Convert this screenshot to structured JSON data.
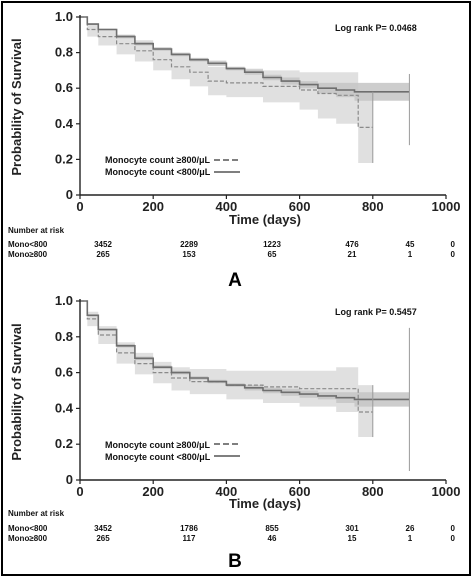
{
  "chart_data": [
    {
      "panel": "A",
      "type": "line",
      "subtype": "kaplan-meier",
      "xlabel": "Time (days)",
      "ylabel": "Probability of Survival",
      "xlim": [
        0,
        1000
      ],
      "ylim": [
        0,
        1.0
      ],
      "xticks": [
        "0",
        "200",
        "400",
        "600",
        "800",
        "1000"
      ],
      "yticks": [
        "0",
        "0.2",
        "0.4",
        "0.6",
        "0.8",
        "1.0"
      ],
      "annotation": "Log rank P= 0.0468",
      "legend_position": "bottom-left",
      "series": [
        {
          "name": "Monocyte count ≥800/μL",
          "style": "dashed",
          "x": [
            0,
            20,
            50,
            100,
            150,
            200,
            250,
            300,
            350,
            400,
            500,
            600,
            650,
            700,
            760,
            800
          ],
          "y": [
            1.0,
            0.93,
            0.89,
            0.85,
            0.81,
            0.76,
            0.72,
            0.69,
            0.64,
            0.63,
            0.61,
            0.59,
            0.57,
            0.56,
            0.38,
            0.38
          ],
          "ci_lower": [
            1.0,
            0.89,
            0.84,
            0.79,
            0.75,
            0.7,
            0.65,
            0.61,
            0.56,
            0.55,
            0.52,
            0.48,
            0.43,
            0.4,
            0.18,
            0.18
          ],
          "ci_upper": [
            1.0,
            0.96,
            0.93,
            0.9,
            0.87,
            0.82,
            0.79,
            0.76,
            0.72,
            0.71,
            0.7,
            0.69,
            0.69,
            0.69,
            0.58,
            0.58
          ]
        },
        {
          "name": "Monocyte count <800/μL",
          "style": "solid",
          "x": [
            0,
            20,
            50,
            100,
            150,
            200,
            250,
            300,
            350,
            400,
            450,
            500,
            550,
            600,
            650,
            700,
            750,
            800,
            900
          ],
          "y": [
            1.0,
            0.96,
            0.93,
            0.89,
            0.85,
            0.82,
            0.79,
            0.76,
            0.74,
            0.71,
            0.69,
            0.66,
            0.64,
            0.62,
            0.6,
            0.59,
            0.58,
            0.58,
            0.58
          ],
          "ci_lower": [
            1.0,
            0.955,
            0.925,
            0.88,
            0.84,
            0.81,
            0.78,
            0.75,
            0.725,
            0.7,
            0.675,
            0.645,
            0.62,
            0.6,
            0.57,
            0.55,
            0.53,
            0.53,
            0.28
          ],
          "ci_upper": [
            1.0,
            0.965,
            0.935,
            0.9,
            0.86,
            0.83,
            0.8,
            0.77,
            0.755,
            0.72,
            0.705,
            0.675,
            0.66,
            0.64,
            0.63,
            0.63,
            0.63,
            0.63,
            0.68
          ]
        }
      ],
      "number_at_risk": {
        "header": "Number at risk",
        "rows": [
          {
            "label": "Mono<800",
            "values": [
              "3452",
              "2289",
              "1223",
              "476",
              "45",
              "0"
            ]
          },
          {
            "label": "Mono≥800",
            "values": [
              "265",
              "153",
              "65",
              "21",
              "1",
              "0"
            ]
          }
        ]
      }
    },
    {
      "panel": "B",
      "type": "line",
      "subtype": "kaplan-meier",
      "xlabel": "Time (days)",
      "ylabel": "Probability of Survival",
      "xlim": [
        0,
        1000
      ],
      "ylim": [
        0,
        1.0
      ],
      "xticks": [
        "0",
        "200",
        "400",
        "600",
        "800",
        "1000"
      ],
      "yticks": [
        "0",
        "0.2",
        "0.4",
        "0.6",
        "0.8",
        "1.0"
      ],
      "annotation": "Log rank P= 0.5457",
      "legend_position": "bottom-left",
      "series": [
        {
          "name": "Monocyte count ≥800/μL",
          "style": "dashed",
          "x": [
            0,
            20,
            50,
            100,
            150,
            200,
            250,
            300,
            400,
            500,
            600,
            700,
            760,
            800
          ],
          "y": [
            1.0,
            0.9,
            0.81,
            0.71,
            0.65,
            0.6,
            0.57,
            0.55,
            0.53,
            0.52,
            0.51,
            0.51,
            0.38,
            0.38
          ],
          "ci_lower": [
            1.0,
            0.86,
            0.76,
            0.65,
            0.59,
            0.54,
            0.5,
            0.48,
            0.45,
            0.43,
            0.41,
            0.38,
            0.24,
            0.24
          ],
          "ci_upper": [
            1.0,
            0.94,
            0.86,
            0.77,
            0.71,
            0.66,
            0.63,
            0.62,
            0.61,
            0.61,
            0.61,
            0.63,
            0.53,
            0.53
          ]
        },
        {
          "name": "Monocyte count <800/μL",
          "style": "solid",
          "x": [
            0,
            20,
            50,
            100,
            150,
            200,
            250,
            300,
            350,
            400,
            450,
            500,
            550,
            600,
            650,
            700,
            750,
            800,
            900
          ],
          "y": [
            1.0,
            0.92,
            0.84,
            0.75,
            0.68,
            0.63,
            0.6,
            0.57,
            0.55,
            0.53,
            0.515,
            0.5,
            0.49,
            0.48,
            0.47,
            0.46,
            0.45,
            0.45,
            0.45
          ],
          "ci_lower": [
            1.0,
            0.915,
            0.835,
            0.74,
            0.67,
            0.62,
            0.59,
            0.56,
            0.54,
            0.52,
            0.5,
            0.485,
            0.47,
            0.46,
            0.45,
            0.43,
            0.41,
            0.41,
            0.05
          ],
          "ci_upper": [
            1.0,
            0.925,
            0.845,
            0.76,
            0.69,
            0.64,
            0.61,
            0.58,
            0.56,
            0.54,
            0.53,
            0.515,
            0.51,
            0.5,
            0.49,
            0.49,
            0.49,
            0.49,
            0.85
          ]
        }
      ],
      "number_at_risk": {
        "header": "Number at risk",
        "rows": [
          {
            "label": "Mono<800",
            "values": [
              "3452",
              "1786",
              "855",
              "301",
              "26",
              "0"
            ]
          },
          {
            "label": "Mono≥800",
            "values": [
              "265",
              "117",
              "46",
              "15",
              "1",
              "0"
            ]
          }
        ]
      }
    }
  ]
}
